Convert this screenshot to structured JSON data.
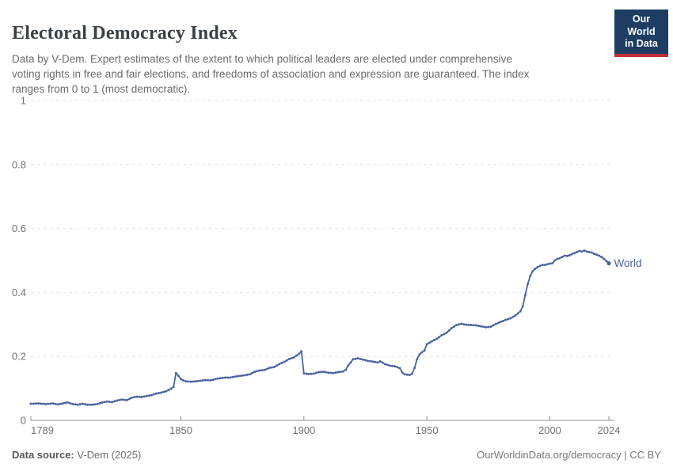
{
  "header": {
    "title": "Electoral Democracy Index",
    "subtitle": "Data by V-Dem. Expert estimates of the extent to which political leaders are elected under comprehensive\nvoting rights in free and fair elections, and freedoms of association and expression are guaranteed. The index\nranges from 0 to 1 (most democratic).",
    "logo_text": "Our World\nin Data",
    "logo_bg": "#1d3d63",
    "logo_stripe": "#bf3036"
  },
  "footer": {
    "source_label": "Data source:",
    "source_value": " V-Dem (2025)",
    "credit": "OurWorldinData.org/democracy | CC BY"
  },
  "chart_data": {
    "type": "line",
    "title": "Electoral Democracy Index",
    "xlabel": "",
    "ylabel": "",
    "xlim": [
      1789,
      2024
    ],
    "ylim": [
      0,
      1
    ],
    "xticks": [
      1789,
      1850,
      1900,
      1950,
      2000,
      2024
    ],
    "xtick_labels": [
      "1789",
      "1850",
      "1900",
      "1950",
      "2000",
      "2024"
    ],
    "yticks": [
      0,
      0.2,
      0.4,
      0.6,
      0.8,
      1
    ],
    "ytick_labels": [
      "0",
      "0.2",
      "0.4",
      "0.6",
      "0.8",
      "1"
    ],
    "grid": "dashed-horizontal",
    "legend_position": "end-of-line-label",
    "colors": {
      "line": "#4a649e",
      "grid": "#e3e3e3",
      "axis": "#8f8f8f",
      "tick_text": "#737373"
    },
    "series": [
      {
        "name": "World",
        "end_label": "World",
        "points": [
          [
            1789,
            0.052
          ],
          [
            1792,
            0.053
          ],
          [
            1795,
            0.051
          ],
          [
            1798,
            0.053
          ],
          [
            1800,
            0.05
          ],
          [
            1802,
            0.053
          ],
          [
            1804,
            0.056
          ],
          [
            1806,
            0.051
          ],
          [
            1808,
            0.049
          ],
          [
            1810,
            0.052
          ],
          [
            1812,
            0.049
          ],
          [
            1814,
            0.049
          ],
          [
            1816,
            0.051
          ],
          [
            1818,
            0.056
          ],
          [
            1820,
            0.059
          ],
          [
            1822,
            0.057
          ],
          [
            1824,
            0.062
          ],
          [
            1826,
            0.065
          ],
          [
            1828,
            0.063
          ],
          [
            1830,
            0.071
          ],
          [
            1832,
            0.074
          ],
          [
            1834,
            0.073
          ],
          [
            1836,
            0.076
          ],
          [
            1838,
            0.079
          ],
          [
            1840,
            0.084
          ],
          [
            1842,
            0.087
          ],
          [
            1844,
            0.091
          ],
          [
            1846,
            0.099
          ],
          [
            1847,
            0.105
          ],
          [
            1848,
            0.148
          ],
          [
            1849,
            0.139
          ],
          [
            1850,
            0.129
          ],
          [
            1851,
            0.125
          ],
          [
            1852,
            0.122
          ],
          [
            1854,
            0.121
          ],
          [
            1856,
            0.122
          ],
          [
            1858,
            0.124
          ],
          [
            1860,
            0.126
          ],
          [
            1862,
            0.125
          ],
          [
            1864,
            0.129
          ],
          [
            1866,
            0.132
          ],
          [
            1868,
            0.134
          ],
          [
            1870,
            0.134
          ],
          [
            1872,
            0.137
          ],
          [
            1874,
            0.139
          ],
          [
            1876,
            0.141
          ],
          [
            1878,
            0.144
          ],
          [
            1880,
            0.152
          ],
          [
            1882,
            0.156
          ],
          [
            1884,
            0.158
          ],
          [
            1886,
            0.164
          ],
          [
            1888,
            0.167
          ],
          [
            1890,
            0.176
          ],
          [
            1892,
            0.183
          ],
          [
            1894,
            0.192
          ],
          [
            1896,
            0.197
          ],
          [
            1898,
            0.208
          ],
          [
            1899,
            0.216
          ],
          [
            1900,
            0.147
          ],
          [
            1902,
            0.145
          ],
          [
            1904,
            0.146
          ],
          [
            1906,
            0.151
          ],
          [
            1908,
            0.152
          ],
          [
            1910,
            0.149
          ],
          [
            1912,
            0.148
          ],
          [
            1914,
            0.151
          ],
          [
            1916,
            0.153
          ],
          [
            1917,
            0.158
          ],
          [
            1918,
            0.171
          ],
          [
            1919,
            0.181
          ],
          [
            1920,
            0.191
          ],
          [
            1922,
            0.194
          ],
          [
            1924,
            0.19
          ],
          [
            1926,
            0.186
          ],
          [
            1928,
            0.184
          ],
          [
            1930,
            0.181
          ],
          [
            1931,
            0.185
          ],
          [
            1933,
            0.176
          ],
          [
            1935,
            0.171
          ],
          [
            1937,
            0.169
          ],
          [
            1939,
            0.163
          ],
          [
            1940,
            0.15
          ],
          [
            1941,
            0.144
          ],
          [
            1943,
            0.142
          ],
          [
            1944,
            0.146
          ],
          [
            1945,
            0.164
          ],
          [
            1946,
            0.191
          ],
          [
            1947,
            0.206
          ],
          [
            1948,
            0.213
          ],
          [
            1949,
            0.218
          ],
          [
            1950,
            0.238
          ],
          [
            1952,
            0.247
          ],
          [
            1954,
            0.255
          ],
          [
            1956,
            0.266
          ],
          [
            1958,
            0.274
          ],
          [
            1960,
            0.288
          ],
          [
            1962,
            0.298
          ],
          [
            1964,
            0.302
          ],
          [
            1966,
            0.299
          ],
          [
            1968,
            0.298
          ],
          [
            1970,
            0.297
          ],
          [
            1972,
            0.294
          ],
          [
            1974,
            0.291
          ],
          [
            1976,
            0.293
          ],
          [
            1978,
            0.301
          ],
          [
            1980,
            0.308
          ],
          [
            1982,
            0.314
          ],
          [
            1984,
            0.319
          ],
          [
            1986,
            0.328
          ],
          [
            1988,
            0.341
          ],
          [
            1989,
            0.357
          ],
          [
            1990,
            0.392
          ],
          [
            1991,
            0.426
          ],
          [
            1992,
            0.451
          ],
          [
            1993,
            0.466
          ],
          [
            1994,
            0.474
          ],
          [
            1995,
            0.479
          ],
          [
            1996,
            0.483
          ],
          [
            1997,
            0.486
          ],
          [
            1998,
            0.486
          ],
          [
            1999,
            0.488
          ],
          [
            2000,
            0.49
          ],
          [
            2001,
            0.491
          ],
          [
            2002,
            0.5
          ],
          [
            2003,
            0.505
          ],
          [
            2004,
            0.507
          ],
          [
            2005,
            0.511
          ],
          [
            2006,
            0.515
          ],
          [
            2007,
            0.514
          ],
          [
            2008,
            0.516
          ],
          [
            2009,
            0.52
          ],
          [
            2010,
            0.523
          ],
          [
            2011,
            0.526
          ],
          [
            2012,
            0.53
          ],
          [
            2013,
            0.528
          ],
          [
            2014,
            0.531
          ],
          [
            2015,
            0.528
          ],
          [
            2016,
            0.526
          ],
          [
            2017,
            0.525
          ],
          [
            2018,
            0.521
          ],
          [
            2019,
            0.518
          ],
          [
            2020,
            0.515
          ],
          [
            2021,
            0.511
          ],
          [
            2022,
            0.505
          ],
          [
            2023,
            0.498
          ],
          [
            2024,
            0.491
          ]
        ]
      }
    ]
  }
}
